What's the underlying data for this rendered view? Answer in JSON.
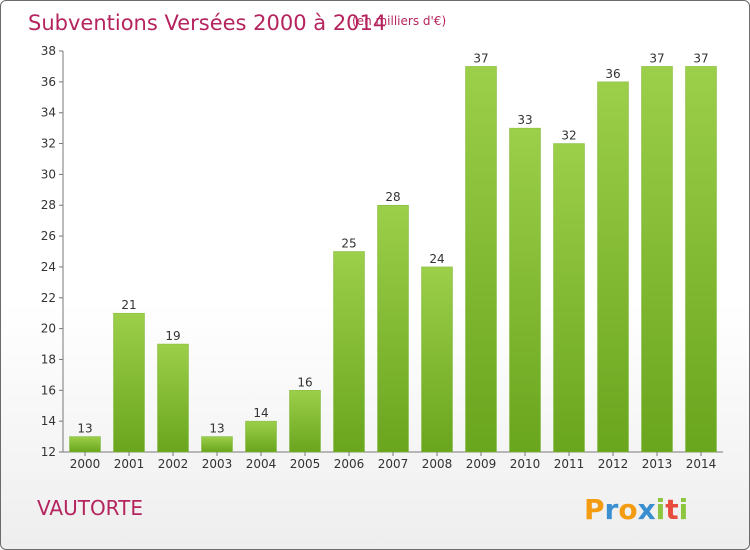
{
  "chart_data": {
    "type": "bar",
    "title": "Subventions Versées 2000 à 2014",
    "subtitle": "(en milliers d'€)",
    "categories": [
      "2000",
      "2001",
      "2002",
      "2003",
      "2004",
      "2005",
      "2006",
      "2007",
      "2008",
      "2009",
      "2010",
      "2011",
      "2012",
      "2013",
      "2014"
    ],
    "values": [
      13,
      21,
      19,
      13,
      14,
      16,
      25,
      28,
      24,
      37,
      33,
      32,
      36,
      37,
      37
    ],
    "ylim": [
      12,
      38
    ],
    "yticks": [
      12,
      14,
      16,
      18,
      20,
      22,
      24,
      26,
      28,
      30,
      32,
      34,
      36,
      38
    ],
    "xlabel": "",
    "ylabel": "",
    "grid": false,
    "bar_color": "#8cc63f"
  },
  "place_name": "VAUTORTE",
  "logo": {
    "letters": [
      "P",
      "r",
      "o",
      "x",
      "i",
      "t",
      "i"
    ],
    "colors": [
      "#f39c12",
      "#3a8fd0",
      "#f39c12",
      "#3a8fd0",
      "#8cc63f",
      "#e74c3c",
      "#8cc63f"
    ]
  }
}
